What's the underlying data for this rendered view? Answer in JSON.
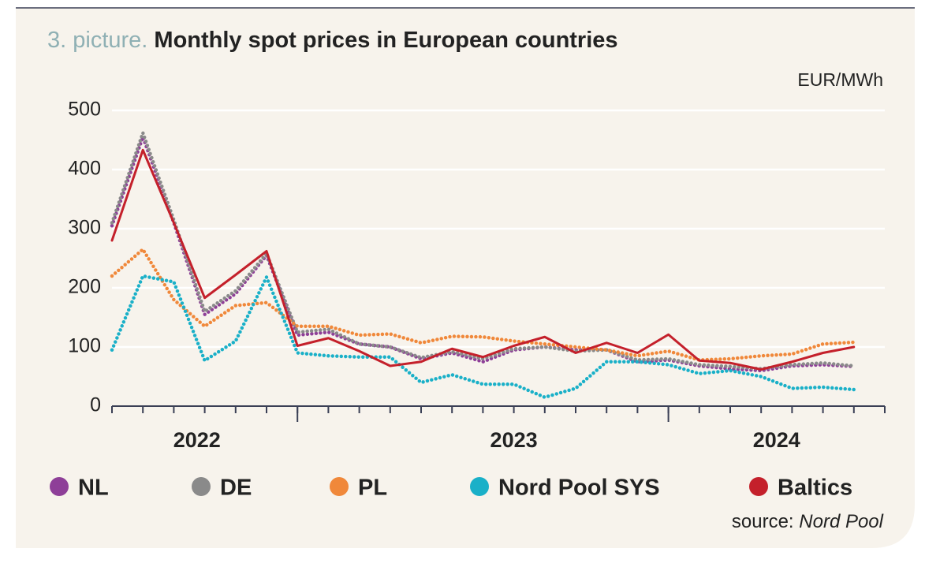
{
  "chart_data": {
    "type": "line",
    "title_prefix": "3. picture.",
    "title": "Monthly spot prices in European countries",
    "unit": "EUR/MWh",
    "source_prefix": "source:",
    "source": "Nord Pool",
    "x": [
      0,
      1,
      2,
      3,
      4,
      5,
      6,
      7,
      8,
      9,
      10,
      11,
      12,
      13,
      14,
      15,
      16,
      17,
      18,
      19,
      20,
      21,
      22,
      23,
      24
    ],
    "xlim": [
      0,
      25
    ],
    "xticks": [
      {
        "value": 2.75,
        "label": "2022"
      },
      {
        "value": 13,
        "label": "2023"
      },
      {
        "value": 21.5,
        "label": "2024"
      }
    ],
    "minor_ticks": [
      0,
      1,
      2,
      3,
      4,
      5,
      6,
      7,
      8,
      9,
      10,
      11,
      12,
      13,
      14,
      15,
      16,
      17,
      18,
      19,
      20,
      21,
      22,
      23,
      24,
      25
    ],
    "year_boundaries": [
      6,
      18
    ],
    "ylim": [
      0,
      500
    ],
    "yticks": [
      0,
      100,
      200,
      300,
      400,
      500
    ],
    "grid": true,
    "series": [
      {
        "name": "NL",
        "color": "#8e3f98",
        "style": "dotted",
        "values": [
          305,
          455,
          310,
          155,
          190,
          255,
          120,
          125,
          105,
          100,
          80,
          90,
          75,
          95,
          100,
          95,
          95,
          75,
          78,
          68,
          63,
          60,
          68,
          70,
          67
        ]
      },
      {
        "name": "DE",
        "color": "#8a8a8a",
        "style": "dotted",
        "values": [
          310,
          462,
          315,
          160,
          195,
          258,
          125,
          130,
          105,
          100,
          82,
          92,
          80,
          97,
          100,
          93,
          95,
          78,
          80,
          70,
          67,
          63,
          70,
          73,
          68
        ]
      },
      {
        "name": "PL",
        "color": "#f0883a",
        "style": "dotted",
        "values": [
          220,
          265,
          180,
          135,
          170,
          175,
          135,
          135,
          120,
          122,
          107,
          118,
          117,
          110,
          105,
          100,
          95,
          85,
          93,
          78,
          80,
          85,
          88,
          105,
          108
        ]
      },
      {
        "name": "Nord Pool SYS",
        "color": "#1ab0c8",
        "style": "dotted",
        "values": [
          95,
          220,
          210,
          77,
          110,
          218,
          90,
          85,
          83,
          83,
          40,
          53,
          37,
          37,
          15,
          30,
          75,
          75,
          70,
          55,
          60,
          50,
          30,
          32,
          28
        ]
      },
      {
        "name": "Baltics",
        "color": "#c4202b",
        "style": "solid",
        "values": [
          280,
          433,
          310,
          183,
          222,
          262,
          102,
          115,
          93,
          68,
          75,
          97,
          83,
          102,
          117,
          90,
          107,
          90,
          121,
          77,
          73,
          62,
          75,
          90,
          100
        ]
      }
    ]
  }
}
